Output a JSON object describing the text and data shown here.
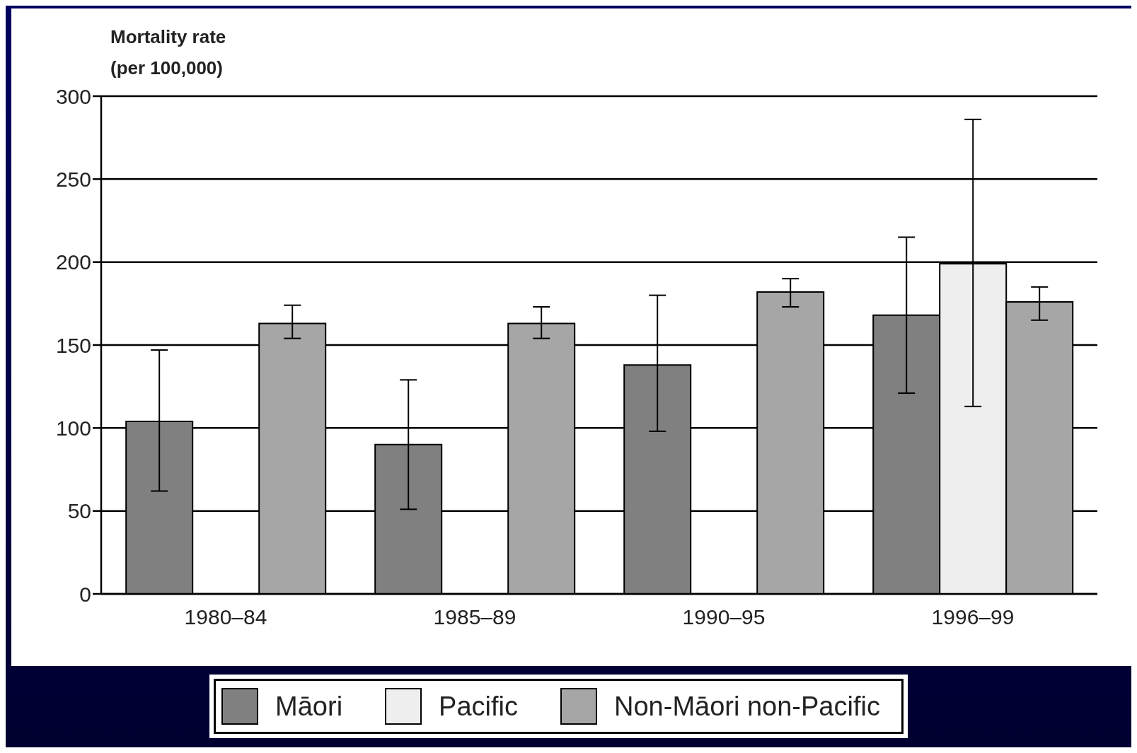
{
  "chart_data": {
    "type": "bar",
    "ylabel": "Mortality rate (per 100,000)",
    "categories": [
      "1980–84",
      "1985–89",
      "1990–95",
      "1996–99"
    ],
    "series": [
      {
        "name": "Māori",
        "color": "#808080",
        "values": [
          104,
          90,
          138,
          168
        ],
        "errors": [
          [
            62,
            147
          ],
          [
            51,
            129
          ],
          [
            98,
            180
          ],
          [
            121,
            215
          ]
        ]
      },
      {
        "name": "Pacific",
        "color": "#eeeeee",
        "values": [
          null,
          null,
          null,
          199
        ],
        "errors": [
          null,
          null,
          null,
          [
            113,
            286
          ]
        ]
      },
      {
        "name": "Non-Māori non-Pacific",
        "color": "#a6a6a6",
        "values": [
          163,
          163,
          182,
          176
        ],
        "errors": [
          [
            154,
            174
          ],
          [
            154,
            173
          ],
          [
            173,
            190
          ],
          [
            165,
            185
          ]
        ]
      }
    ],
    "ylim": [
      0,
      300
    ],
    "yticks": [
      0,
      50,
      100,
      150,
      200,
      250,
      300
    ],
    "grid": "y",
    "legend": "bottom"
  }
}
